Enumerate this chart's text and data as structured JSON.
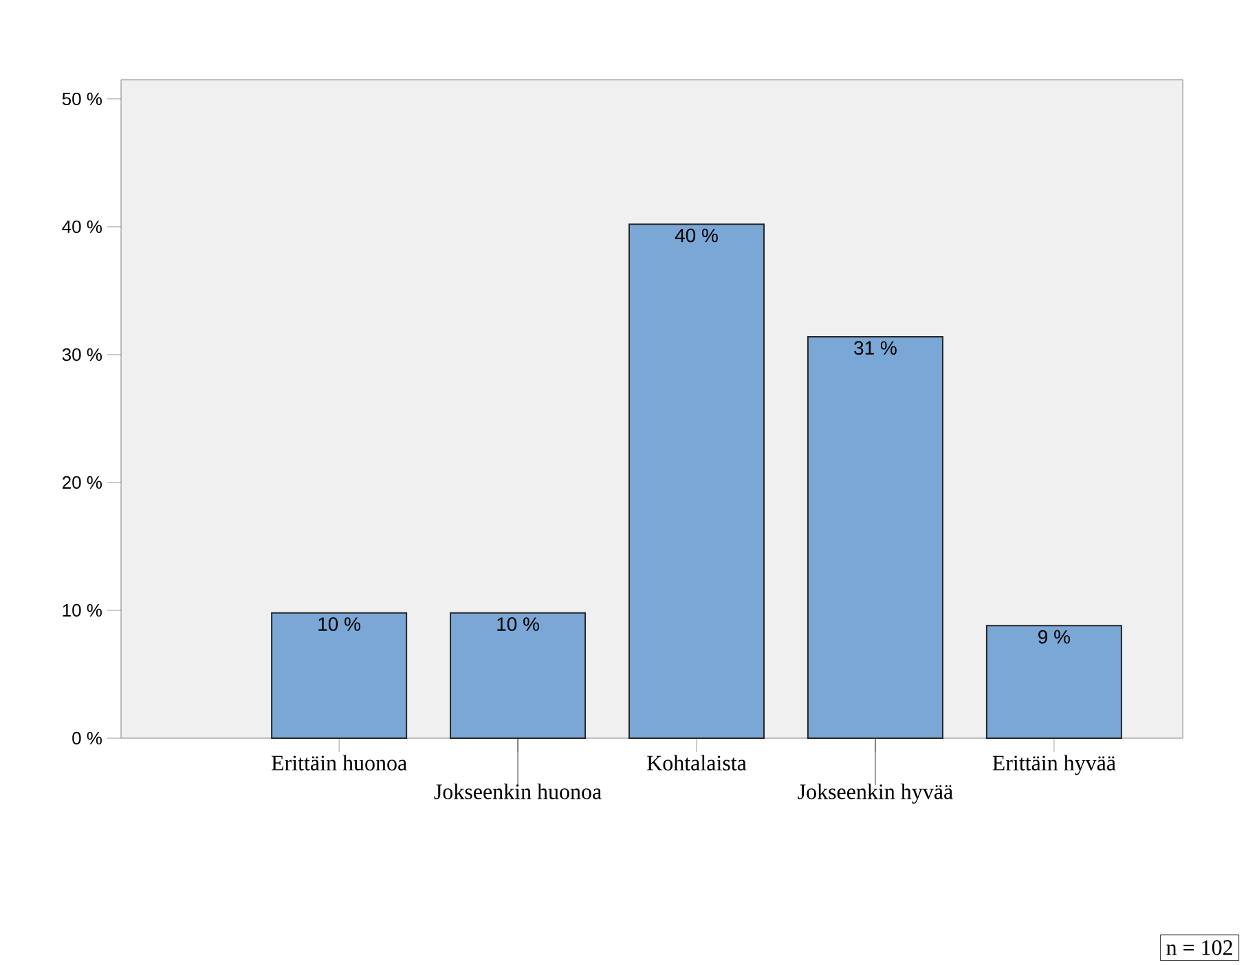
{
  "chart_data": {
    "type": "bar",
    "categories": [
      "Erittäin huonoa",
      "Jokseenkin huonoa",
      "Kohtalaista",
      "Jokseenkin hyvää",
      "Erittäin hyvää"
    ],
    "values": [
      9.8,
      9.8,
      40.2,
      31.4,
      8.8
    ],
    "value_labels": [
      "10 %",
      "10 %",
      "40 %",
      "31 %",
      "9 %"
    ],
    "color": "#7aa7d6",
    "ylim": [
      0,
      51.5
    ],
    "yticks": [
      {
        "value": 0,
        "label": "0 %"
      },
      {
        "value": 10,
        "label": "10 %"
      },
      {
        "value": 20,
        "label": "20 %"
      },
      {
        "value": 30,
        "label": "30 %"
      },
      {
        "value": 40,
        "label": "40 %"
      },
      {
        "value": 50,
        "label": "50 %"
      }
    ],
    "grid": false,
    "annotations": [
      "n = 102"
    ]
  }
}
